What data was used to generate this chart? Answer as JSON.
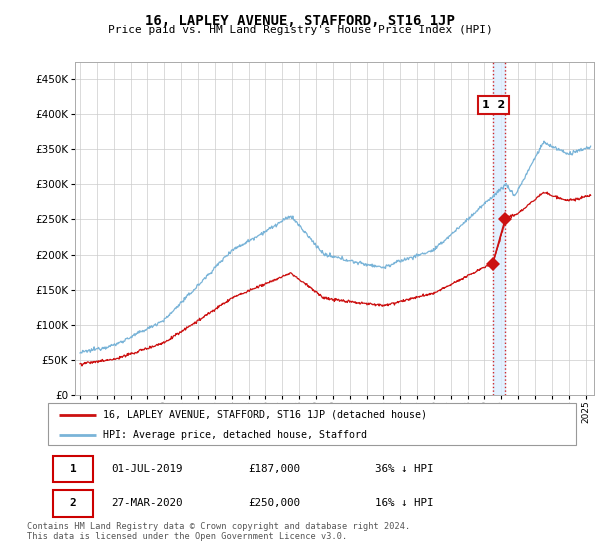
{
  "title": "16, LAPLEY AVENUE, STAFFORD, ST16 1JP",
  "subtitle": "Price paid vs. HM Land Registry's House Price Index (HPI)",
  "ylim": [
    0,
    475000
  ],
  "yticks": [
    0,
    50000,
    100000,
    150000,
    200000,
    250000,
    300000,
    350000,
    400000,
    450000
  ],
  "ytick_labels": [
    "£0",
    "£50K",
    "£100K",
    "£150K",
    "£200K",
    "£250K",
    "£300K",
    "£350K",
    "£400K",
    "£450K"
  ],
  "xlim_start": 1994.7,
  "xlim_end": 2025.5,
  "hpi_color": "#7ab4d8",
  "price_color": "#cc1111",
  "transaction1_x": 2019.49,
  "transaction1_y": 187000,
  "transaction2_x": 2020.23,
  "transaction2_y": 250000,
  "legend_line1": "16, LAPLEY AVENUE, STAFFORD, ST16 1JP (detached house)",
  "legend_line2": "HPI: Average price, detached house, Stafford",
  "table_row1": [
    "1",
    "01-JUL-2019",
    "£187,000",
    "36% ↓ HPI"
  ],
  "table_row2": [
    "2",
    "27-MAR-2020",
    "£250,000",
    "16% ↓ HPI"
  ],
  "footer": "Contains HM Land Registry data © Crown copyright and database right 2024.\nThis data is licensed under the Open Government Licence v3.0.",
  "grid_color": "#cccccc",
  "highlight_color": "#ddeeff"
}
